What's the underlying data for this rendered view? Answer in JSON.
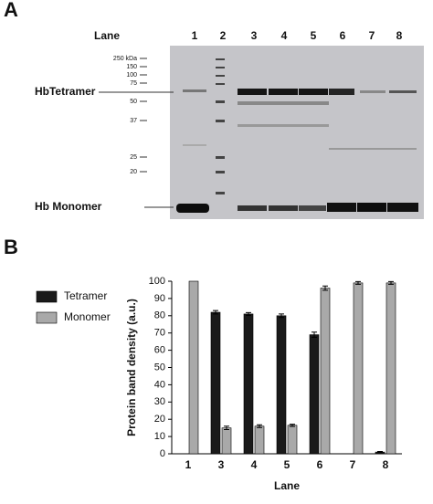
{
  "panel_a": {
    "label": "A",
    "lane_header": "Lane",
    "lanes": [
      "1",
      "2",
      "3",
      "4",
      "5",
      "6",
      "7",
      "8"
    ],
    "markers": [
      "250 kDa",
      "150",
      "100",
      "75",
      "50",
      "37",
      "25",
      "20"
    ],
    "band_labels": [
      "HbTetramer",
      "Hb Monomer"
    ]
  },
  "panel_b": {
    "label": "B"
  },
  "chart_data": {
    "type": "bar",
    "categories": [
      "1",
      "3",
      "4",
      "5",
      "6",
      "7",
      "8"
    ],
    "series": [
      {
        "name": "Tetramer",
        "color": "#1a1a1a",
        "values": [
          0,
          82,
          81,
          80,
          69,
          0,
          1
        ],
        "errors": [
          0,
          1,
          0.8,
          1,
          1.5,
          0,
          0.3
        ]
      },
      {
        "name": "Monomer",
        "color": "#a9a9a9",
        "values": [
          100,
          15,
          16,
          16.5,
          96,
          99,
          99
        ],
        "errors": [
          0,
          1,
          0.8,
          0.6,
          1.2,
          0.8,
          0.8
        ]
      }
    ],
    "ylim": [
      0,
      100
    ],
    "yticks": [
      0,
      10,
      20,
      30,
      40,
      50,
      60,
      70,
      80,
      90,
      100
    ],
    "y_label": "Protein band density (a.u.)",
    "x_label": "Lane",
    "legend": "left"
  }
}
